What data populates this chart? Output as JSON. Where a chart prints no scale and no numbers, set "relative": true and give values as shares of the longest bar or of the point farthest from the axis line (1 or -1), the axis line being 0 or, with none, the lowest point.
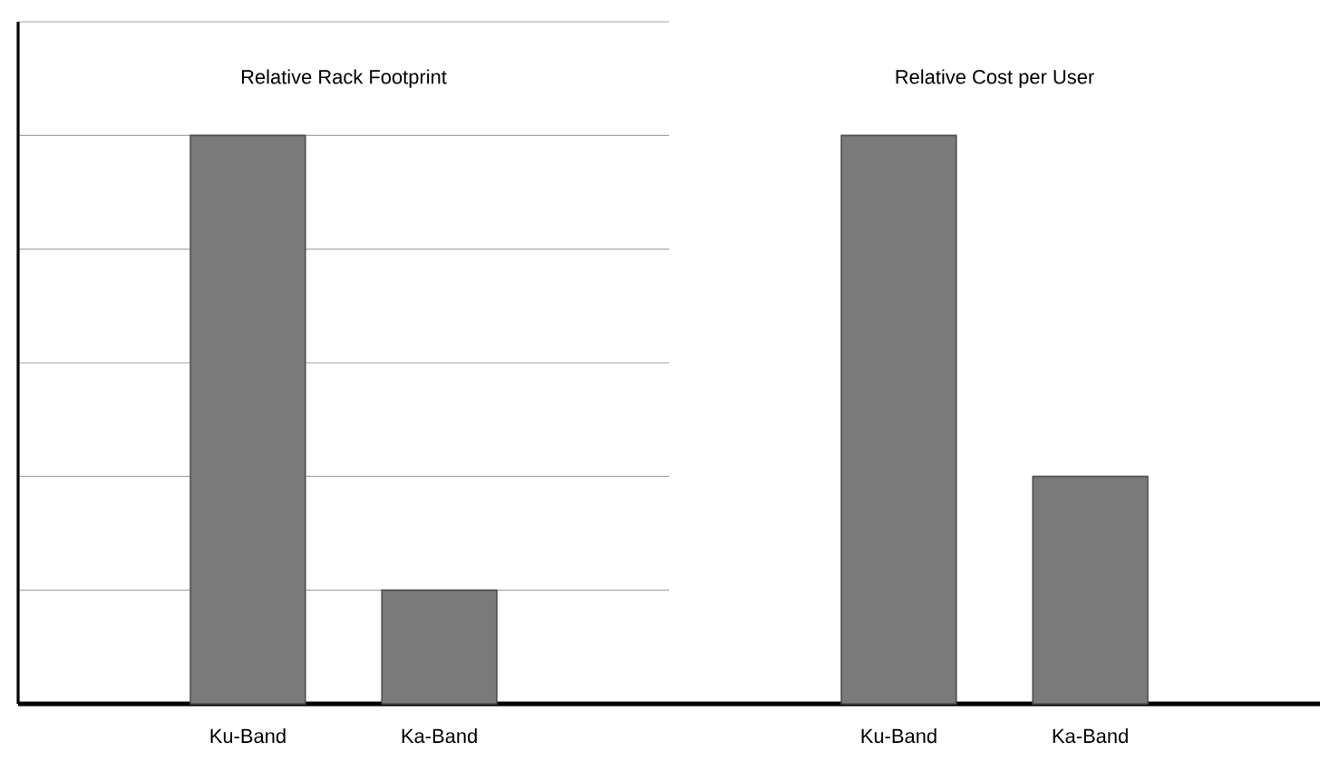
{
  "chart_data": [
    {
      "type": "bar",
      "title": "Relative Rack Footprint",
      "categories": [
        "Ku-Band",
        "Ka-Band"
      ],
      "values": [
        1,
        0.2
      ],
      "color": "#7a7a7a",
      "relative": true,
      "grid": "y"
    },
    {
      "type": "bar",
      "title": "Relative Cost per User",
      "categories": [
        "Ku-Band",
        "Ka-Band"
      ],
      "values": [
        1,
        0.4
      ],
      "color": "#7a7a7a",
      "relative": true,
      "grid": "y"
    }
  ]
}
